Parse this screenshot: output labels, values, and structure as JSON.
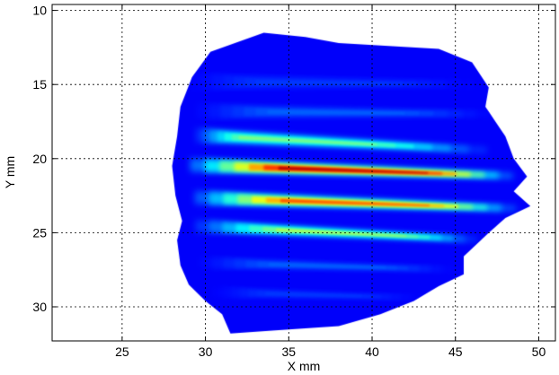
{
  "chart_data": {
    "type": "heatmap",
    "title": "",
    "xlabel": "X mm",
    "ylabel": "Y mm",
    "xlim": [
      20.8,
      51.0
    ],
    "ylim": [
      32.3,
      9.6
    ],
    "y_reversed": true,
    "grid": true,
    "grid_style": "dotted",
    "colormap": "jet",
    "xticks": [
      25,
      30,
      35,
      40,
      45,
      50
    ],
    "yticks": [
      10,
      15,
      20,
      25,
      30
    ],
    "xtick_labels": [
      "25",
      "30",
      "35",
      "40",
      "45",
      "50"
    ],
    "ytick_labels": [
      "10",
      "15",
      "20",
      "25",
      "30"
    ],
    "envelope": {
      "outline": [
        [
          30.3,
          12.8
        ],
        [
          33.5,
          11.5
        ],
        [
          36,
          11.8
        ],
        [
          38,
          12.2
        ],
        [
          41,
          12.4
        ],
        [
          44,
          12.6
        ],
        [
          46,
          13.5
        ],
        [
          47,
          15.2
        ],
        [
          46.8,
          16.5
        ],
        [
          48,
          18.5
        ],
        [
          48.5,
          20.0
        ],
        [
          49.3,
          21.2
        ],
        [
          48.5,
          22.2
        ],
        [
          49.5,
          23.2
        ],
        [
          48,
          24.0
        ],
        [
          47,
          25.0
        ],
        [
          45.5,
          26.6
        ],
        [
          45.5,
          27.8
        ],
        [
          44,
          28.6
        ],
        [
          42.5,
          29.6
        ],
        [
          40.5,
          30.5
        ],
        [
          38,
          31.3
        ],
        [
          34,
          31.6
        ],
        [
          31.5,
          31.8
        ],
        [
          31,
          30.5
        ],
        [
          30,
          29.6
        ],
        [
          29,
          28.5
        ],
        [
          28.5,
          27.2
        ],
        [
          28.3,
          25.5
        ],
        [
          28.6,
          24.2
        ],
        [
          28.2,
          22.5
        ],
        [
          28.0,
          20.5
        ],
        [
          28.3,
          18.5
        ],
        [
          28.5,
          16.5
        ],
        [
          29.2,
          14.5
        ]
      ],
      "base_intensity": 0.12
    },
    "streaks": [
      {
        "x0": 28.5,
        "x1": 47.0,
        "y0": 14.8,
        "y1": 15.0,
        "width": 0.7,
        "peak": 0.18,
        "peak_x": 36
      },
      {
        "x0": 28.8,
        "x1": 48.0,
        "y0": 16.8,
        "y1": 17.0,
        "width": 0.6,
        "peak": 0.22,
        "peak_x": 37
      },
      {
        "x0": 29.0,
        "x1": 48.0,
        "y0": 18.4,
        "y1": 19.5,
        "width": 0.55,
        "peak": 0.5,
        "peak_x": 34
      },
      {
        "x0": 28.2,
        "x1": 49.3,
        "y0": 20.4,
        "y1": 21.2,
        "width": 0.5,
        "peak": 0.95,
        "peak_x": 38.5
      },
      {
        "x0": 28.5,
        "x1": 49.5,
        "y0": 22.6,
        "y1": 23.4,
        "width": 0.5,
        "peak": 0.8,
        "peak_x": 38.5
      },
      {
        "x0": 28.6,
        "x1": 47.0,
        "y0": 24.5,
        "y1": 25.5,
        "width": 0.45,
        "peak": 0.55,
        "peak_x": 38
      },
      {
        "x0": 29.0,
        "x1": 45.5,
        "y0": 27.0,
        "y1": 27.5,
        "width": 0.45,
        "peak": 0.22,
        "peak_x": 37
      },
      {
        "x0": 30.0,
        "x1": 43.5,
        "y0": 29.0,
        "y1": 29.4,
        "width": 0.45,
        "peak": 0.18,
        "peak_x": 36
      }
    ]
  }
}
